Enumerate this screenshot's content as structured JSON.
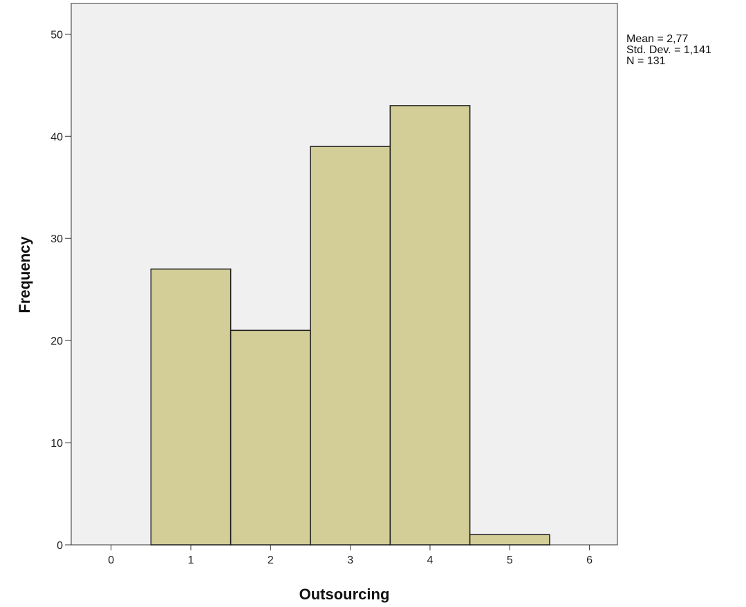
{
  "chart_data": {
    "type": "bar",
    "subtype": "histogram",
    "xlabel": "Outsourcing",
    "ylabel": "Frequency",
    "bins": [
      {
        "center": 1,
        "value": 27
      },
      {
        "center": 2,
        "value": 21
      },
      {
        "center": 3,
        "value": 39
      },
      {
        "center": 4,
        "value": 43
      },
      {
        "center": 5,
        "value": 1
      }
    ],
    "bin_width": 1,
    "xlim": [
      -0.5,
      6.35
    ],
    "ylim": [
      0,
      53
    ],
    "x_ticks": [
      0,
      1,
      2,
      3,
      4,
      5,
      6
    ],
    "y_ticks": [
      0,
      10,
      20,
      30,
      40,
      50
    ],
    "grid": false,
    "colors": {
      "plot_background": "#f0f0f0",
      "bar_fill": "#d3ce98",
      "bar_stroke": "#1a1a1a",
      "axis": "#333333"
    },
    "stats": {
      "mean": "Mean = 2,77",
      "std_dev": "Std. Dev. = 1,141",
      "n": "N = 131"
    }
  }
}
